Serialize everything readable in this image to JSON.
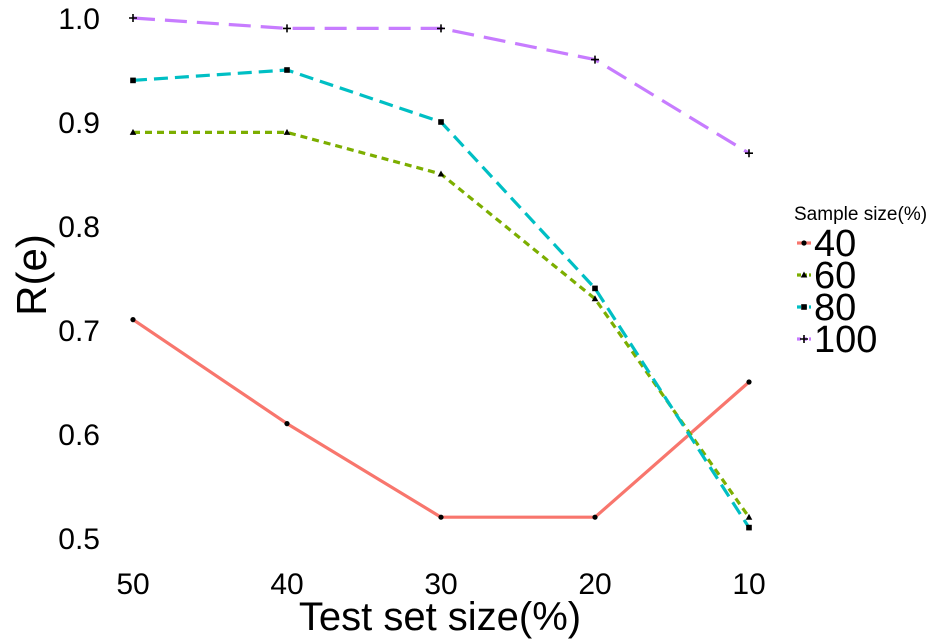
{
  "chart_data": {
    "type": "line",
    "xlabel": "Test set size(%)",
    "ylabel": "R(e)",
    "categories": [
      "50",
      "40",
      "30",
      "20",
      "10"
    ],
    "yticks": [
      "0.5",
      "0.6",
      "0.7",
      "0.8",
      "0.9",
      "1.0"
    ],
    "ylim": [
      0.5,
      1.0
    ],
    "grid": false,
    "legend": {
      "title": "Sample size(%)",
      "placement": "right"
    },
    "series": [
      {
        "name": "40",
        "values": [
          0.71,
          0.61,
          0.52,
          0.52,
          0.65
        ],
        "color": "#F8766D",
        "dash": "solid",
        "marker": "circle"
      },
      {
        "name": "60",
        "values": [
          0.89,
          0.89,
          0.85,
          0.73,
          0.52
        ],
        "color": "#7CAE00",
        "dash": "dotted",
        "marker": "triangle"
      },
      {
        "name": "80",
        "values": [
          0.94,
          0.95,
          0.9,
          0.74,
          0.51
        ],
        "color": "#00BFC4",
        "dash": "dashed",
        "marker": "square"
      },
      {
        "name": "100",
        "values": [
          1.0,
          0.99,
          0.99,
          0.96,
          0.87
        ],
        "color": "#C77CFF",
        "dash": "longdash",
        "marker": "plus"
      }
    ]
  }
}
